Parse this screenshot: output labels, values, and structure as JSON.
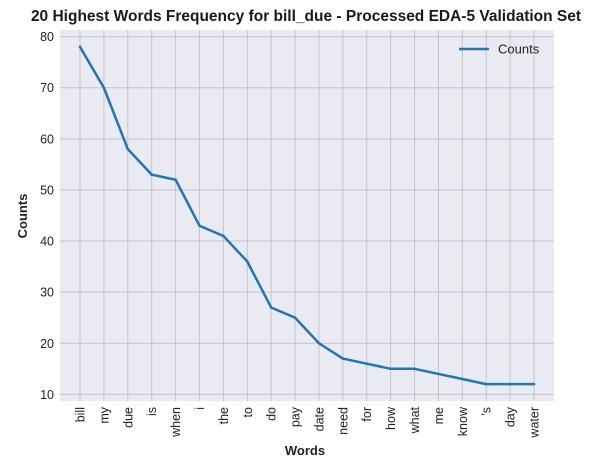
{
  "chart_data": {
    "type": "line",
    "title": "20 Highest Words Frequency for bill_due - Processed EDA-5 Validation Set",
    "xlabel": "Words",
    "ylabel": "Counts",
    "categories": [
      "bill",
      "my",
      "due",
      "is",
      "when",
      "i",
      "the",
      "to",
      "do",
      "pay",
      "date",
      "need",
      "for",
      "how",
      "what",
      "me",
      "know",
      "'s",
      "day",
      "water"
    ],
    "series": [
      {
        "name": "Counts",
        "values": [
          78,
          70,
          58,
          53,
          52,
          43,
          41,
          36,
          27,
          25,
          20,
          17,
          16,
          15,
          15,
          14,
          13,
          12,
          12,
          12
        ]
      }
    ],
    "ylim": [
      8.7,
      81.3
    ],
    "yticks": [
      10,
      20,
      30,
      40,
      50,
      60,
      70,
      80
    ],
    "grid": true,
    "legend_position": "top-right",
    "colors": {
      "line": "#1f77b4",
      "plot_background": "#eaeaf2",
      "grid": "#c4c4c8"
    }
  }
}
